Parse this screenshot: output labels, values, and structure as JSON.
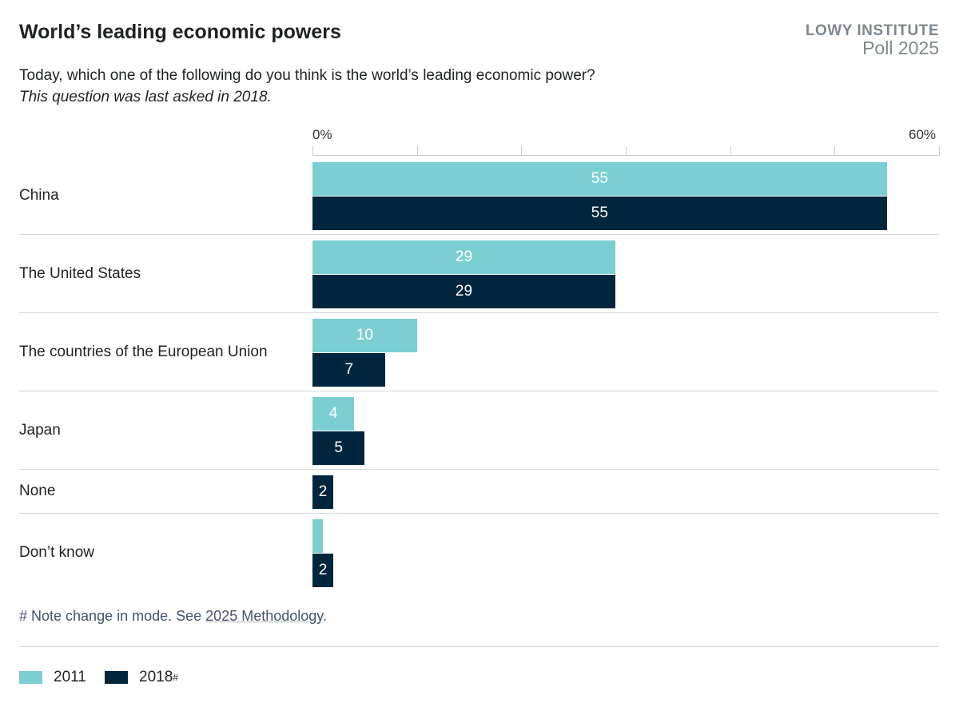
{
  "header": {
    "title": "World’s leading economic powers",
    "brand_line1": "LOWY INSTITUTE",
    "brand_line2": "Poll 2025",
    "subtitle": "Today, which one of the following do you think is the world’s leading economic power?",
    "note": "This question was last asked in 2018."
  },
  "footer": {
    "note_prefix": "# Note change in mode. See ",
    "link": "2025 Methodology",
    "note_suffix": "."
  },
  "chart_data": {
    "type": "bar",
    "orientation": "horizontal",
    "xlim": [
      0,
      60
    ],
    "x_ticks": [
      0,
      10,
      20,
      30,
      40,
      50,
      60
    ],
    "x_tick_labels": [
      "0%",
      "60%"
    ],
    "categories": [
      "China",
      "The United States",
      "The countries of the European Union",
      "Japan",
      "None",
      "Don’t know"
    ],
    "series": [
      {
        "name": "2011",
        "color": "#7bcfd2",
        "values": [
          55,
          29,
          10,
          4,
          null,
          1
        ],
        "labels": [
          "55",
          "29",
          "10",
          "4",
          "",
          ""
        ]
      },
      {
        "name": "2018",
        "name_suffix": "#",
        "color": "#00263e",
        "values": [
          55,
          29,
          7,
          5,
          2,
          2
        ],
        "labels": [
          "55",
          "29",
          "7",
          "5",
          "2",
          "2"
        ]
      }
    ],
    "legend": "bottom-left",
    "grid": false
  }
}
